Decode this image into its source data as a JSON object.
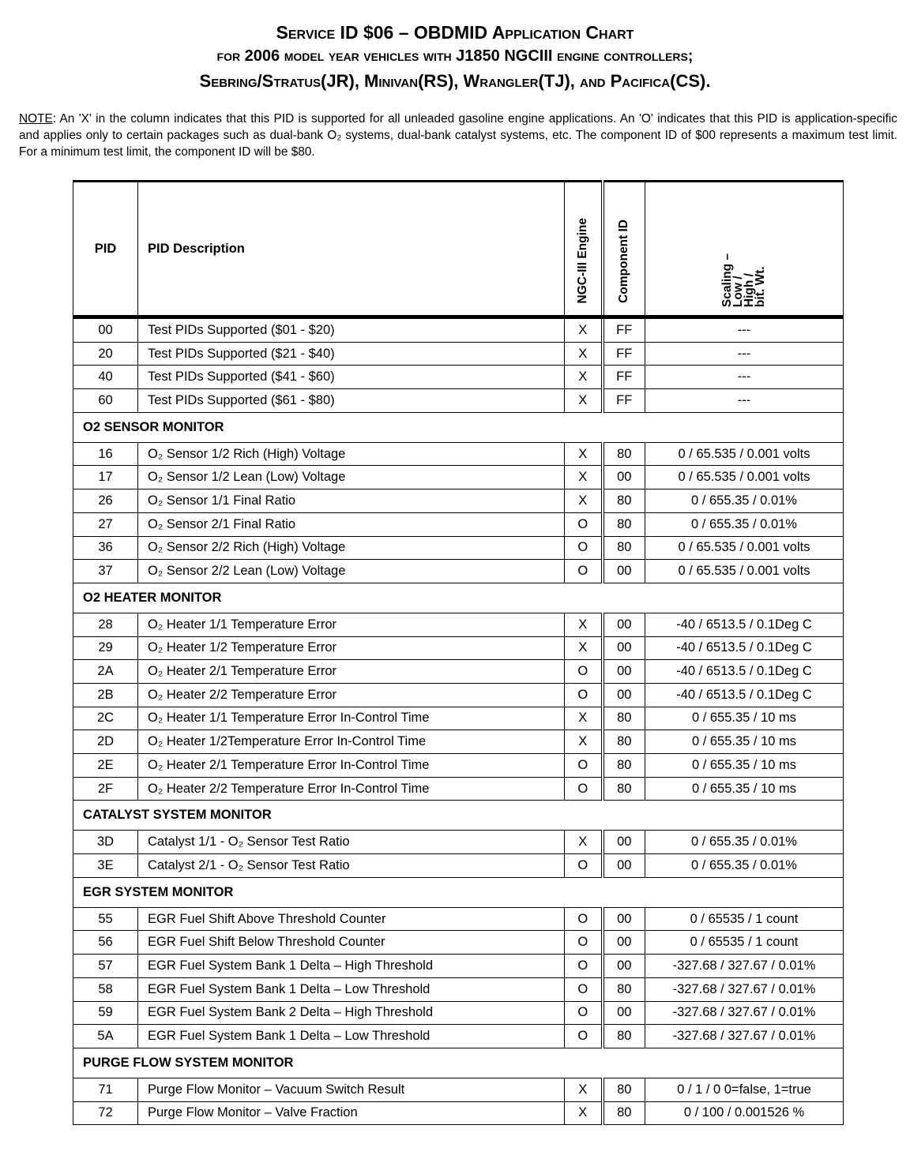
{
  "title": {
    "line1": "Service ID $06 – OBDMID Application Chart",
    "line2": "for 2006 model year vehicles with J1850 NGCIII engine controllers;",
    "line3": "Sebring/Stratus(JR), Minivan(RS), Wrangler(TJ), and Pacifica(CS)."
  },
  "note": {
    "label": "NOTE",
    "text": ":  An 'X' in the column indicates that this PID is supported for all unleaded gasoline engine applications. An 'O' indicates that this PID is application-specific and applies only to certain packages such as dual-bank O₂ systems, dual-bank catalyst systems, etc. The component ID of $00 represents a maximum test limit. For a minimum test limit, the component ID will be $80."
  },
  "table": {
    "headers": {
      "pid": "PID",
      "desc": "PID Description",
      "engine": "NGC-III Engine",
      "component": "Component ID",
      "scaling": "Scaling –\nLow /\nHigh /\nbit. Wt."
    },
    "groups": [
      {
        "section": "",
        "rows": [
          [
            "00",
            "Test PIDs Supported ($01 - $20)",
            "X",
            "FF",
            "---"
          ],
          [
            "20",
            "Test PIDs Supported ($21 - $40)",
            "X",
            "FF",
            "---"
          ],
          [
            "40",
            "Test PIDs Supported ($41 - $60)",
            "X",
            "FF",
            "---"
          ],
          [
            "60",
            "Test PIDs Supported ($61 - $80)",
            "X",
            "FF",
            "---"
          ]
        ]
      },
      {
        "section": "O2 SENSOR MONITOR",
        "rows": [
          [
            "16",
            "O₂ Sensor 1/2 Rich (High) Voltage",
            "X",
            "80",
            "0 / 65.535 / 0.001 volts"
          ],
          [
            "17",
            "O₂ Sensor 1/2 Lean (Low) Voltage",
            "X",
            "00",
            "0 / 65.535 / 0.001 volts"
          ],
          [
            "26",
            "O₂ Sensor 1/1 Final Ratio",
            "X",
            "80",
            "0 / 655.35 / 0.01%"
          ],
          [
            "27",
            "O₂ Sensor 2/1 Final Ratio",
            "O",
            "80",
            "0 / 655.35 / 0.01%"
          ],
          [
            "36",
            "O₂ Sensor 2/2 Rich (High) Voltage",
            "O",
            "80",
            "0 / 65.535 / 0.001 volts"
          ],
          [
            "37",
            "O₂ Sensor 2/2 Lean (Low) Voltage",
            "O",
            "00",
            "0 / 65.535 / 0.001 volts"
          ]
        ]
      },
      {
        "section": "O2 HEATER MONITOR",
        "rows": [
          [
            "28",
            "O₂ Heater 1/1 Temperature Error",
            "X",
            "00",
            "-40 / 6513.5 / 0.1Deg C"
          ],
          [
            "29",
            "O₂ Heater 1/2 Temperature Error",
            "X",
            "00",
            "-40 / 6513.5 / 0.1Deg C"
          ],
          [
            "2A",
            "O₂ Heater 2/1 Temperature Error",
            "O",
            "00",
            "-40 / 6513.5 / 0.1Deg C"
          ],
          [
            "2B",
            "O₂ Heater 2/2 Temperature Error",
            "O",
            "00",
            "-40 / 6513.5 / 0.1Deg C"
          ],
          [
            "2C",
            "O₂ Heater 1/1 Temperature Error In-Control Time",
            "X",
            "80",
            "0 / 655.35 / 10 ms"
          ],
          [
            "2D",
            "O₂ Heater 1/2Temperature Error In-Control Time",
            "X",
            "80",
            "0 / 655.35 / 10 ms"
          ],
          [
            "2E",
            "O₂ Heater 2/1 Temperature Error In-Control Time",
            "O",
            "80",
            "0 / 655.35 / 10 ms"
          ],
          [
            "2F",
            "O₂ Heater 2/2 Temperature Error In-Control Time",
            "O",
            "80",
            "0 / 655.35 / 10 ms"
          ]
        ]
      },
      {
        "section": "CATALYST SYSTEM MONITOR",
        "rows": [
          [
            "3D",
            "Catalyst 1/1 - O₂ Sensor Test Ratio",
            "X",
            "00",
            "0 / 655.35 / 0.01%"
          ],
          [
            "3E",
            "Catalyst 2/1 - O₂ Sensor Test Ratio",
            "O",
            "00",
            "0 / 655.35 / 0.01%"
          ]
        ]
      },
      {
        "section": "EGR SYSTEM MONITOR",
        "rows": [
          [
            "55",
            "EGR Fuel Shift Above Threshold Counter",
            "O",
            "00",
            "0 / 65535 /  1 count"
          ],
          [
            "56",
            "EGR Fuel Shift Below Threshold Counter",
            "O",
            "00",
            "0 / 65535 /  1 count"
          ],
          [
            "57",
            "EGR Fuel System Bank 1 Delta – High Threshold",
            "O",
            "00",
            "-327.68 / 327.67 / 0.01%"
          ],
          [
            "58",
            "EGR Fuel System Bank 1 Delta – Low Threshold",
            "O",
            "80",
            "-327.68 / 327.67 / 0.01%"
          ],
          [
            "59",
            "EGR Fuel System Bank 2 Delta – High Threshold",
            "O",
            "00",
            "-327.68 / 327.67 / 0.01%"
          ],
          [
            "5A",
            "EGR Fuel System Bank 1 Delta – Low Threshold",
            "O",
            "80",
            "-327.68 / 327.67 / 0.01%"
          ]
        ]
      },
      {
        "section": "PURGE FLOW SYSTEM MONITOR",
        "rows": [
          [
            "71",
            "Purge Flow Monitor – Vacuum Switch Result",
            "X",
            "80",
            "0 / 1 / 0  0=false, 1=true"
          ],
          [
            "72",
            "Purge Flow Monitor – Valve Fraction",
            "X",
            "80",
            "0 / 100 / 0.001526 %"
          ]
        ]
      }
    ]
  }
}
